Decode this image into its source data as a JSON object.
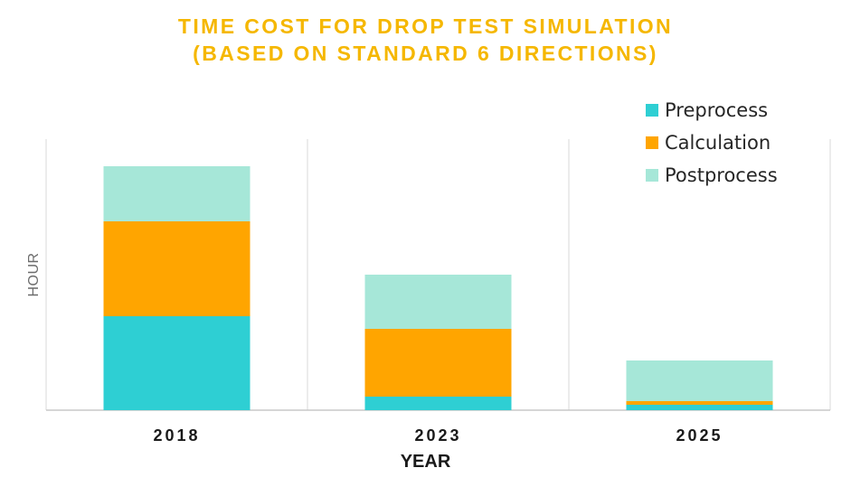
{
  "chart_data": {
    "type": "bar",
    "stacked": true,
    "title_lines": [
      "TIME COST FOR DROP TEST SIMULATION",
      "(BASED ON STANDARD 6 DIRECTIONS)"
    ],
    "xlabel": "YEAR",
    "ylabel": "HOUR",
    "categories": [
      "2018",
      "2023",
      "2025"
    ],
    "series": [
      {
        "name": "Preprocess",
        "color": "#2ecfd3",
        "values": [
          104,
          15,
          6
        ]
      },
      {
        "name": "Calculation",
        "color": "#ffa500",
        "values": [
          105,
          75,
          4
        ]
      },
      {
        "name": "Postprocess",
        "color": "#a6e7d8",
        "values": [
          61,
          60,
          45
        ]
      }
    ],
    "ylim": [
      0,
      300
    ],
    "grid": "vertical separators",
    "legend": "top-right"
  }
}
